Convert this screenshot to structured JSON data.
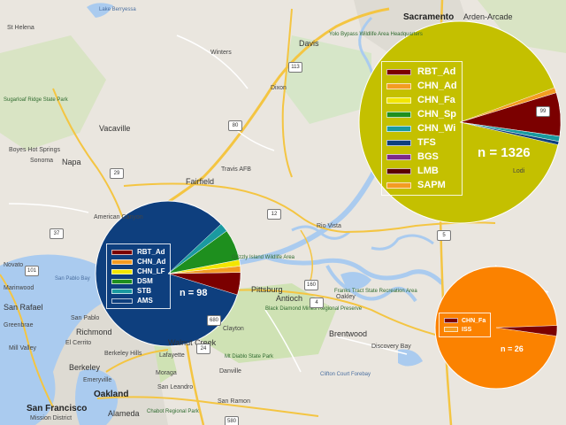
{
  "map": {
    "colors": {
      "land": "#eae6df",
      "water": "#aacbef",
      "park": "#cfe2b4",
      "urban": "#dedbd3",
      "road": "#f4c542",
      "road_secondary": "#ffffff"
    },
    "places": [
      {
        "name": "Lake Berryessa",
        "cls": "water"
      },
      {
        "name": "St Helena",
        "cls": ""
      },
      {
        "name": "Sugarloaf Ridge State Park",
        "cls": "park"
      },
      {
        "name": "Boyes Hot Springs",
        "cls": ""
      },
      {
        "name": "Sonoma",
        "cls": ""
      },
      {
        "name": "Napa",
        "cls": "big"
      },
      {
        "name": "Vacaville",
        "cls": "big"
      },
      {
        "name": "Winters",
        "cls": ""
      },
      {
        "name": "Davis",
        "cls": "big"
      },
      {
        "name": "Yolo Bypass Wildlife Area Headquarters",
        "cls": "park"
      },
      {
        "name": "Dixon",
        "cls": ""
      },
      {
        "name": "Travis AFB",
        "cls": ""
      },
      {
        "name": "Fairfield",
        "cls": "big"
      },
      {
        "name": "American Canyon",
        "cls": ""
      },
      {
        "name": "Rio Vista",
        "cls": ""
      },
      {
        "name": "Sacramento",
        "cls": "city"
      },
      {
        "name": "Arden-Arcade",
        "cls": "big"
      },
      {
        "name": "Novato",
        "cls": ""
      },
      {
        "name": "San Pablo Bay",
        "cls": "water"
      },
      {
        "name": "Marinwood",
        "cls": ""
      },
      {
        "name": "San Rafael",
        "cls": "big"
      },
      {
        "name": "Greenbrae",
        "cls": ""
      },
      {
        "name": "Mill Valley",
        "cls": ""
      },
      {
        "name": "San Pablo",
        "cls": ""
      },
      {
        "name": "Richmond",
        "cls": "big"
      },
      {
        "name": "El Cerrito",
        "cls": ""
      },
      {
        "name": "Berkeley",
        "cls": "big"
      },
      {
        "name": "Berkeley Hills",
        "cls": ""
      },
      {
        "name": "Emeryville",
        "cls": ""
      },
      {
        "name": "Oakland",
        "cls": "city"
      },
      {
        "name": "Alameda",
        "cls": "big"
      },
      {
        "name": "San Francisco",
        "cls": "city"
      },
      {
        "name": "Mission District",
        "cls": ""
      },
      {
        "name": "Chabot Regional Park",
        "cls": "park"
      },
      {
        "name": "San Leandro",
        "cls": ""
      },
      {
        "name": "Walnut Creek",
        "cls": "big"
      },
      {
        "name": "Lafayette",
        "cls": ""
      },
      {
        "name": "Moraga",
        "cls": ""
      },
      {
        "name": "Clayton",
        "cls": ""
      },
      {
        "name": "Mt Diablo State Park",
        "cls": "park"
      },
      {
        "name": "Danville",
        "cls": ""
      },
      {
        "name": "San Ramon",
        "cls": ""
      },
      {
        "name": "Pittsburg",
        "cls": "big"
      },
      {
        "name": "Antioch",
        "cls": "big"
      },
      {
        "name": "Oakley",
        "cls": ""
      },
      {
        "name": "Black Diamond Mines Regional Preserve",
        "cls": "park"
      },
      {
        "name": "Brentwood",
        "cls": "big"
      },
      {
        "name": "Franks Tract State Recreation Area",
        "cls": "park"
      },
      {
        "name": "Discovery Bay",
        "cls": ""
      },
      {
        "name": "Clifton Court Forebay",
        "cls": "water"
      },
      {
        "name": "Grizzly Island Wildlife Area",
        "cls": "park"
      },
      {
        "name": "Lodi",
        "cls": ""
      }
    ],
    "highways": [
      {
        "label": "12"
      },
      {
        "label": "113"
      },
      {
        "label": "80"
      },
      {
        "label": "29"
      },
      {
        "label": "160"
      },
      {
        "label": "4"
      },
      {
        "label": "680"
      },
      {
        "label": "24"
      },
      {
        "label": "580"
      },
      {
        "label": "5"
      },
      {
        "label": "99"
      },
      {
        "label": "37"
      },
      {
        "label": "101"
      }
    ]
  },
  "pie_charts": [
    {
      "id": "pie-1",
      "count_label": "n = 98",
      "legend": [
        {
          "label": "RBT_Ad",
          "color": "#7b0000"
        },
        {
          "label": "CHN_Ad",
          "color": "#f39c22"
        },
        {
          "label": "CHN_LF",
          "color": "#f2e600"
        },
        {
          "label": "DSM",
          "color": "#1e8f1e"
        },
        {
          "label": "STB",
          "color": "#1a9aa0"
        },
        {
          "label": "AMS",
          "color": "#0e3f7e"
        }
      ]
    },
    {
      "id": "pie-2",
      "count_label": "n = 1326",
      "legend": [
        {
          "label": "RBT_Ad",
          "color": "#7b0000"
        },
        {
          "label": "CHN_Ad",
          "color": "#f39c22"
        },
        {
          "label": "CHN_Fa",
          "color": "#f2e600"
        },
        {
          "label": "CHN_Sp",
          "color": "#1e8f1e"
        },
        {
          "label": "CHN_Wi",
          "color": "#1a9aa0"
        },
        {
          "label": "TFS",
          "color": "#0e3f7e"
        },
        {
          "label": "BGS",
          "color": "#7d2a8a"
        },
        {
          "label": "LMB",
          "color": "#5a0000"
        },
        {
          "label": "SAPM",
          "color": "#f39c22"
        }
      ]
    },
    {
      "id": "pie-3",
      "count_label": "n = 26",
      "legend": [
        {
          "label": "CHN_Fa",
          "color": "#7b0000"
        },
        {
          "label": "ISS",
          "color": "#f39c22"
        }
      ]
    }
  ]
}
